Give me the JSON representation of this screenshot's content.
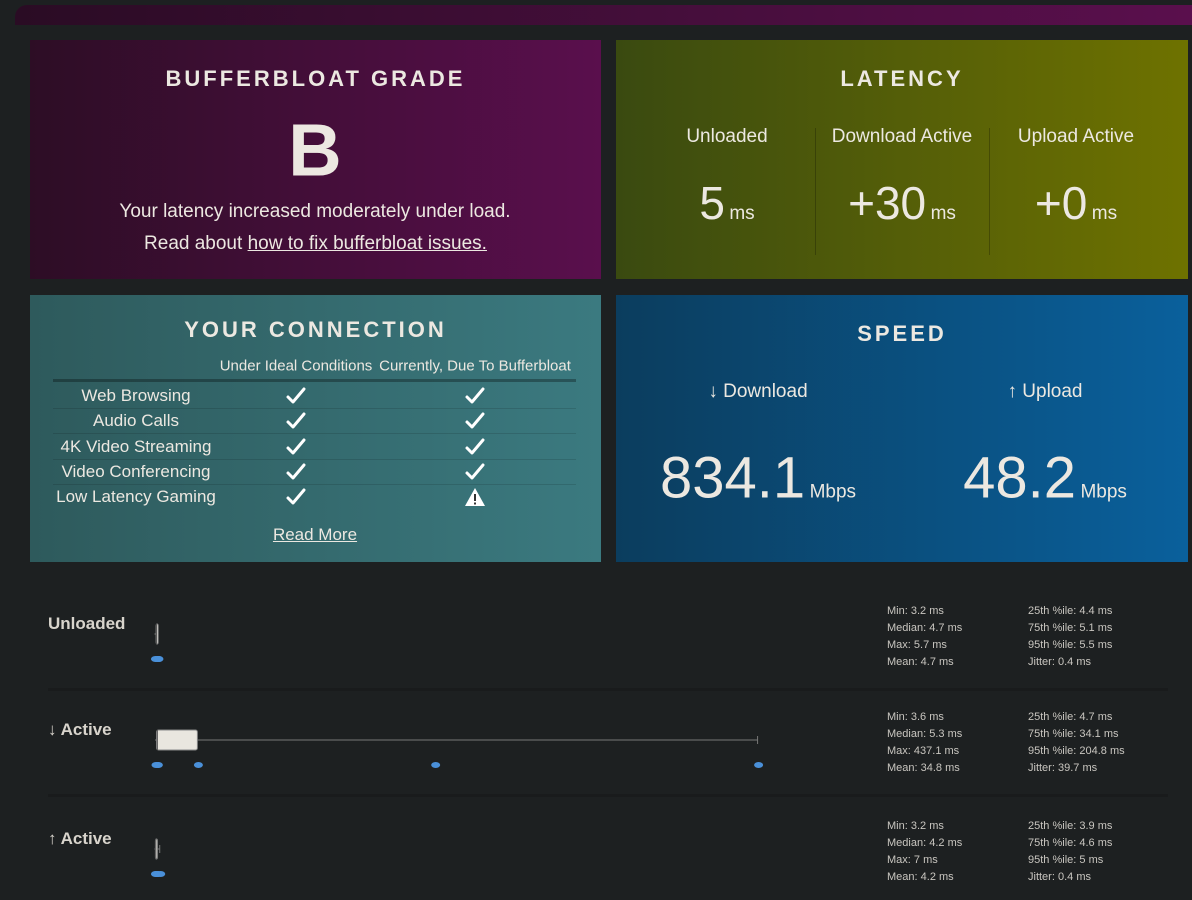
{
  "grade": {
    "title": "BUFFERBLOAT GRADE",
    "grade": "B",
    "message": "Your latency increased moderately under load.",
    "link_prefix": "Read about",
    "link_text": "how to fix bufferbloat issues."
  },
  "latency": {
    "title": "LATENCY",
    "columns": [
      {
        "label": "Unloaded",
        "value": "5",
        "unit": "ms"
      },
      {
        "label": "Download Active",
        "value": "+30",
        "unit": "ms"
      },
      {
        "label": "Upload Active",
        "value": "+0",
        "unit": "ms"
      }
    ]
  },
  "connection": {
    "title": "YOUR CONNECTION",
    "headers": [
      "Under Ideal Conditions",
      "Currently, Due To Bufferbloat"
    ],
    "rows": [
      {
        "label": "Web Browsing",
        "ideal": "ok",
        "current": "ok"
      },
      {
        "label": "Audio Calls",
        "ideal": "ok",
        "current": "ok"
      },
      {
        "label": "4K Video Streaming",
        "ideal": "ok",
        "current": "ok"
      },
      {
        "label": "Video Conferencing",
        "ideal": "ok",
        "current": "ok"
      },
      {
        "label": "Low Latency Gaming",
        "ideal": "ok",
        "current": "warning"
      }
    ],
    "link": "Read More"
  },
  "speed": {
    "title": "SPEED",
    "columns": [
      {
        "label": "↓ Download",
        "value": "834.1",
        "unit": "Mbps"
      },
      {
        "label": "↑ Upload",
        "value": "48.2",
        "unit": "Mbps"
      }
    ]
  },
  "latency_details": [
    {
      "label": "Unloaded",
      "stats": {
        "min": {
          "label": "Min:",
          "value": 3.2,
          "unit": "ms"
        },
        "median": {
          "label": "Median:",
          "value": 4.7,
          "unit": "ms"
        },
        "max": {
          "label": "Max:",
          "value": 5.7,
          "unit": "ms"
        },
        "mean": {
          "label": "Mean:",
          "value": 4.7,
          "unit": "ms"
        },
        "p25": {
          "label": "25th %ile:",
          "value": 4.4,
          "unit": "ms"
        },
        "p75": {
          "label": "75th %ile:",
          "value": 5.1,
          "unit": "ms"
        },
        "p95": {
          "label": "95th %ile:",
          "value": 5.5,
          "unit": "ms"
        },
        "jitter": {
          "label": "Jitter:",
          "value": 0.4,
          "unit": "ms"
        }
      }
    },
    {
      "label": "↓ Active",
      "stats": {
        "min": {
          "label": "Min:",
          "value": 3.6,
          "unit": "ms"
        },
        "median": {
          "label": "Median:",
          "value": 5.3,
          "unit": "ms"
        },
        "max": {
          "label": "Max:",
          "value": 437.1,
          "unit": "ms"
        },
        "mean": {
          "label": "Mean:",
          "value": 34.8,
          "unit": "ms"
        },
        "p25": {
          "label": "25th %ile:",
          "value": 4.7,
          "unit": "ms"
        },
        "p75": {
          "label": "75th %ile:",
          "value": 34.1,
          "unit": "ms"
        },
        "p95": {
          "label": "95th %ile:",
          "value": 204.8,
          "unit": "ms"
        },
        "jitter": {
          "label": "Jitter:",
          "value": 39.7,
          "unit": "ms"
        }
      }
    },
    {
      "label": "↑ Active",
      "stats": {
        "min": {
          "label": "Min:",
          "value": 3.2,
          "unit": "ms"
        },
        "median": {
          "label": "Median:",
          "value": 4.2,
          "unit": "ms"
        },
        "max": {
          "label": "Max:",
          "value": 7,
          "unit": "ms"
        },
        "mean": {
          "label": "Mean:",
          "value": 4.2,
          "unit": "ms"
        },
        "p25": {
          "label": "25th %ile:",
          "value": 3.9,
          "unit": "ms"
        },
        "p75": {
          "label": "75th %ile:",
          "value": 4.6,
          "unit": "ms"
        },
        "p95": {
          "label": "95th %ile:",
          "value": 5,
          "unit": "ms"
        },
        "jitter": {
          "label": "Jitter:",
          "value": 0.4,
          "unit": "ms"
        }
      }
    }
  ]
}
